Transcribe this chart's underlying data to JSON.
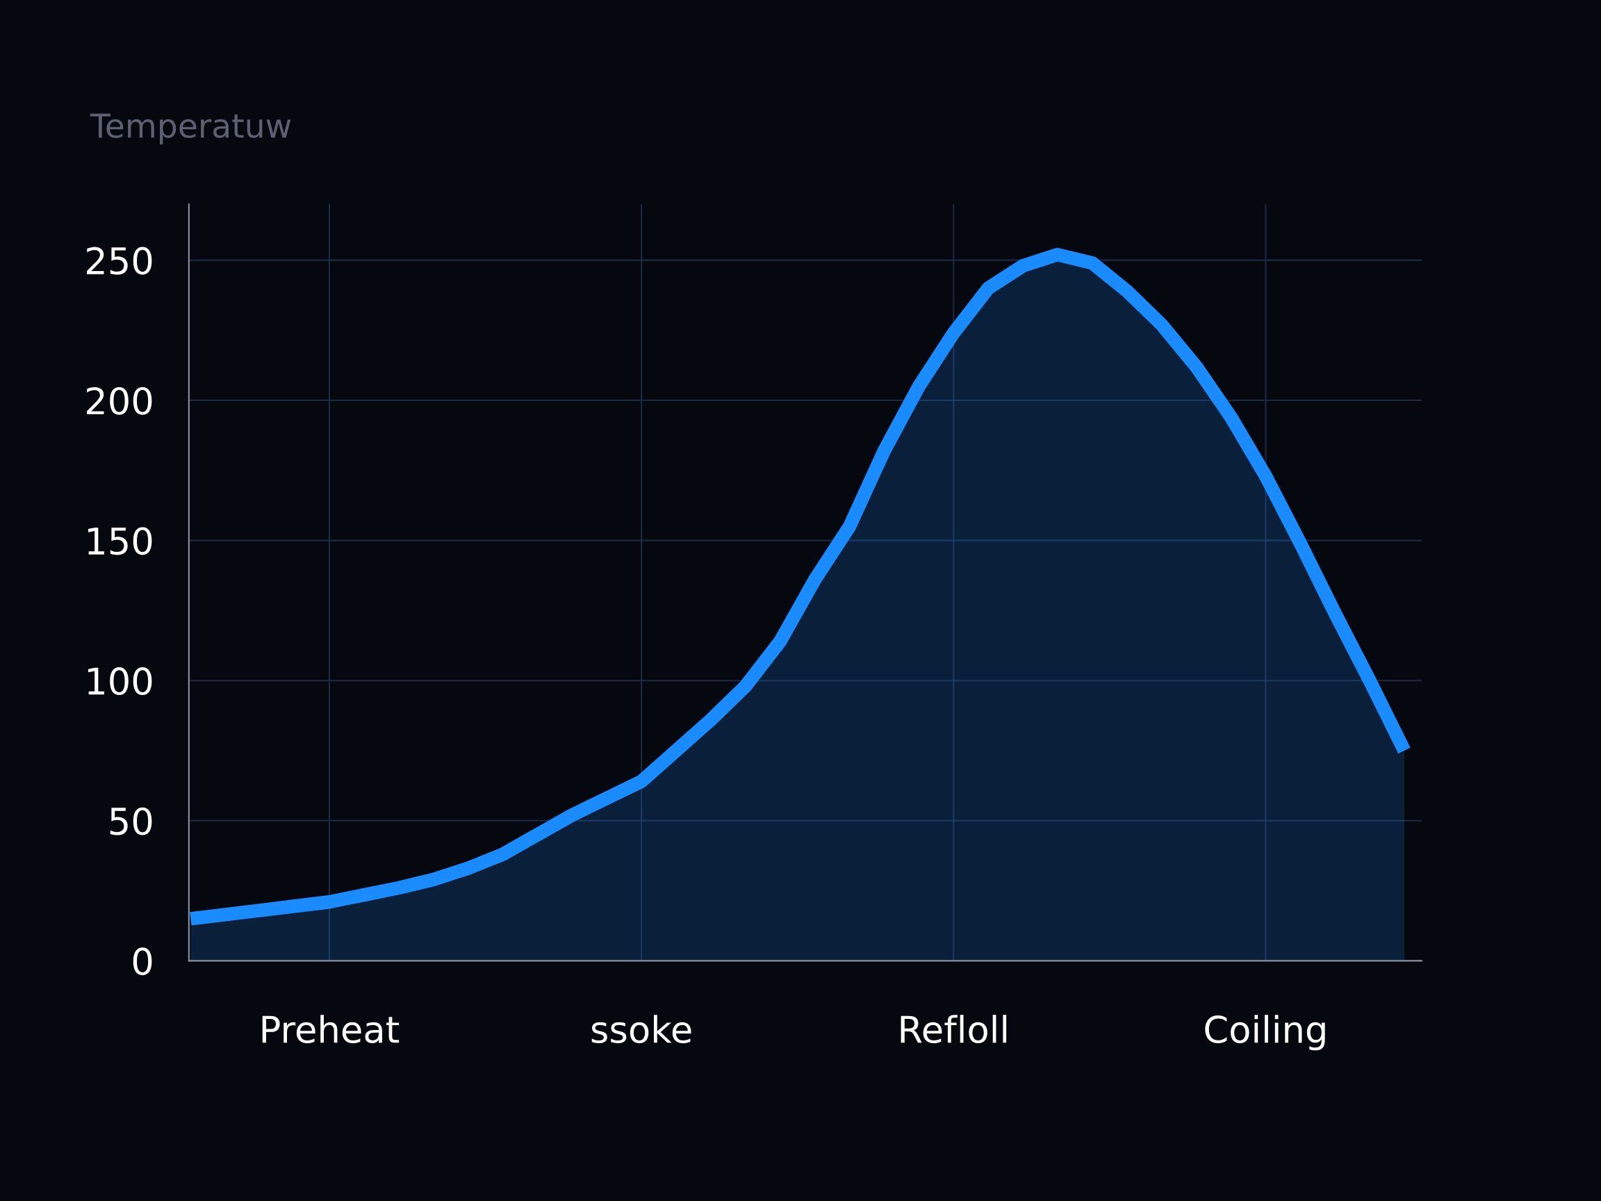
{
  "chart_data": {
    "type": "area",
    "ylabel": "Temperatuw",
    "categories": [
      null,
      null,
      null,
      null,
      "Preheat",
      null,
      null,
      null,
      null,
      null,
      null,
      null,
      null,
      "ssoke",
      null,
      null,
      null,
      null,
      null,
      null,
      null,
      null,
      "Refloll",
      null,
      null,
      null,
      null,
      null,
      null,
      null,
      null,
      "Coiling",
      null,
      null,
      null,
      null
    ],
    "series": [
      {
        "color": "#1a8cff",
        "values": [
          15,
          16.5,
          18,
          19.5,
          21,
          23.5,
          26,
          29,
          33,
          38,
          45,
          52,
          58,
          64,
          75,
          86,
          98,
          114,
          136,
          155,
          182,
          205,
          224,
          240,
          248,
          252,
          249,
          239,
          227,
          212,
          194,
          173,
          149,
          124,
          100,
          75
        ]
      }
    ],
    "ylim": [
      0,
      270
    ],
    "yticks": [
      0,
      50,
      100,
      150,
      200,
      250
    ],
    "grid": true
  }
}
